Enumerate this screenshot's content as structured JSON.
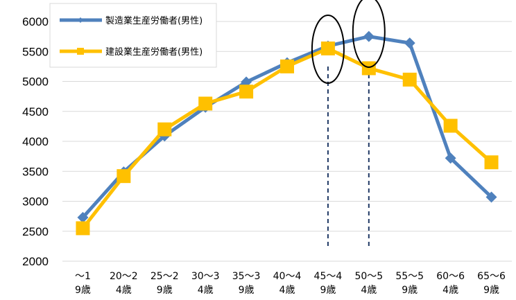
{
  "chart_data": {
    "type": "line",
    "title": "",
    "xlabel": "",
    "ylabel": "",
    "ylim": [
      2000,
      6000
    ],
    "yticks": [
      2000,
      2500,
      3000,
      3500,
      4000,
      4500,
      5000,
      5500,
      6000
    ],
    "categories": [
      [
        "～1",
        "9歳"
      ],
      [
        "20～2",
        "4歳"
      ],
      [
        "25～2",
        "9歳"
      ],
      [
        "30～3",
        "4歳"
      ],
      [
        "35～3",
        "9歳"
      ],
      [
        "40～4",
        "4歳"
      ],
      [
        "45～4",
        "9歳"
      ],
      [
        "50～5",
        "4歳"
      ],
      [
        "55～5",
        "9歳"
      ],
      [
        "60～6",
        "4歳"
      ],
      [
        "65～6",
        "9歳"
      ]
    ],
    "series": [
      {
        "name": "製造業生産労働者(男性)",
        "color": "#4F81BD",
        "marker": "diamond",
        "values": [
          2730,
          3490,
          4090,
          4570,
          4990,
          5310,
          5590,
          5750,
          5640,
          3720,
          3070
        ]
      },
      {
        "name": "建設業生産労働者(男性)",
        "color": "#FFC000",
        "marker": "square",
        "values": [
          2550,
          3420,
          4200,
          4630,
          4830,
          5250,
          5550,
          5220,
          5030,
          4260,
          3650
        ]
      }
    ],
    "grid": "horizontal",
    "legend_position": "top-left",
    "annotations": {
      "ellipses_around": [
        6,
        7
      ],
      "dashed_guides_at": [
        6,
        7
      ]
    }
  }
}
